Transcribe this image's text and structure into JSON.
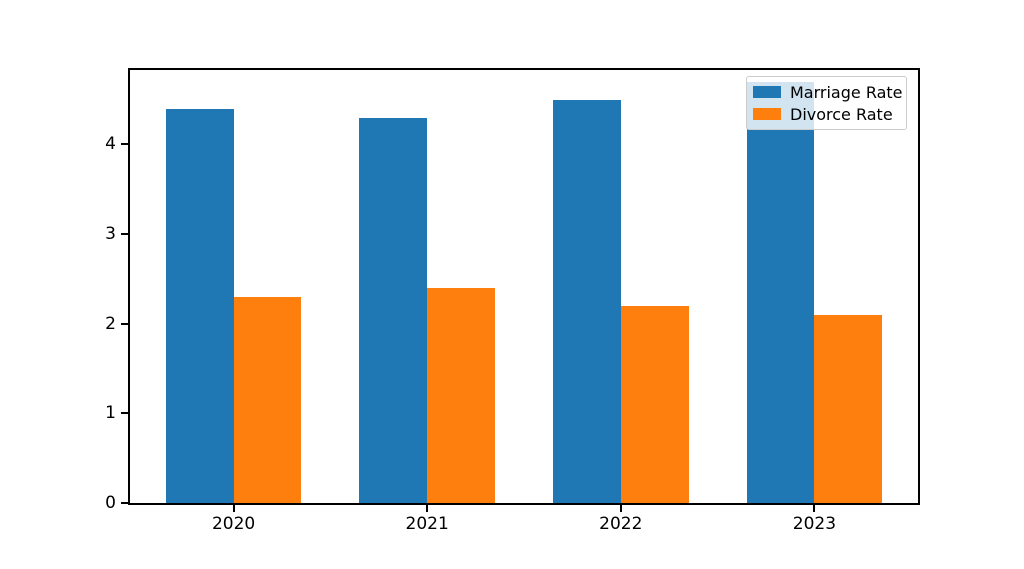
{
  "chart_data": {
    "type": "bar",
    "title": "",
    "xlabel": "",
    "ylabel": "",
    "categories": [
      "2020",
      "2021",
      "2022",
      "2023"
    ],
    "series": [
      {
        "name": "Marriage Rate",
        "color": "#1f77b4",
        "values": [
          4.4,
          4.3,
          4.5,
          4.7
        ]
      },
      {
        "name": "Divorce Rate",
        "color": "#ff7f0e",
        "values": [
          2.3,
          2.4,
          2.2,
          2.1
        ]
      }
    ],
    "y_ticks": [
      0,
      1,
      2,
      3,
      4
    ],
    "ylim": [
      0,
      4.83
    ],
    "xlim": [
      -0.535,
      3.535
    ],
    "bar_width": 0.35,
    "grid": false,
    "legend": {
      "position": "upper right",
      "entries": [
        "Marriage Rate",
        "Divorce Rate"
      ]
    },
    "colors": {
      "background": "#ffffff",
      "spine": "#000000",
      "text": "#000000",
      "legend_border": "#cccccc"
    }
  }
}
